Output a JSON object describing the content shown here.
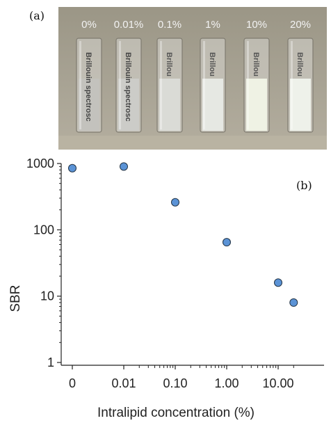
{
  "panels": {
    "a": "(a)",
    "b": "(b)"
  },
  "photo": {
    "concentration_labels": [
      "0%",
      "0.01%",
      "0.1%",
      "1%",
      "10%",
      "20%"
    ],
    "cuvette_texts": [
      "Brillouin spectrosc",
      "Brillouin spectrosc",
      "Brillou",
      "Brillou",
      "Brillou",
      "Brillou"
    ],
    "liquid_colors": [
      "#c3c2bd",
      "#ccccc8",
      "#dadbd6",
      "#e6e8e3",
      "#eff2e4",
      "#eef1ea"
    ]
  },
  "chart_data": {
    "type": "scatter",
    "title": "",
    "xlabel": "Intralipid concentration (%)",
    "ylabel": "SBR",
    "y_scale": "log",
    "ylim": [
      1,
      1000
    ],
    "y_ticks": [
      "1",
      "10",
      "100",
      "1000"
    ],
    "x_ticks": [
      "0",
      "0.01",
      "0.10",
      "1.00",
      "10.00"
    ],
    "x_tick_positions": [
      0,
      0.01,
      0.1,
      1,
      10
    ],
    "points": [
      {
        "x": 0,
        "y": 850
      },
      {
        "x": 0.01,
        "y": 900
      },
      {
        "x": 0.1,
        "y": 260
      },
      {
        "x": 1,
        "y": 65
      },
      {
        "x": 10,
        "y": 16
      },
      {
        "x": 20,
        "y": 8
      }
    ],
    "marker_color": "#5b93d6",
    "marker_edge": "#223344",
    "grid": false,
    "legend": "none"
  }
}
